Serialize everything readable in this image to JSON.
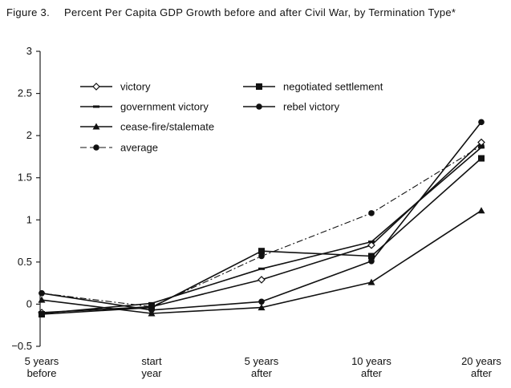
{
  "figure": {
    "label": "Figure 3.",
    "title": "Percent Per Capita GDP Growth before and after Civil War, by Termination Type*"
  },
  "chart_data": {
    "type": "line",
    "title": "Percent Per Capita GDP Growth before and after Civil War, by Termination Type*",
    "xlabel": "",
    "ylabel": "",
    "categories": [
      [
        "5 years",
        "before"
      ],
      [
        "start",
        "year"
      ],
      [
        "5 years",
        "after"
      ],
      [
        "10 years",
        "after"
      ],
      [
        "20 years",
        "after"
      ]
    ],
    "ylim": [
      -0.5,
      3
    ],
    "yticks": [
      "−0.5",
      "0",
      "0.5",
      "1",
      "1.5",
      "2",
      "2.5",
      "3"
    ],
    "ytick_values": [
      -0.5,
      0,
      0.5,
      1,
      1.5,
      2,
      2.5,
      3
    ],
    "grid": false,
    "legend_position": "top-left",
    "series": [
      {
        "name": "victory",
        "marker": "diamond-open",
        "dash": "solid",
        "values": [
          -0.1,
          -0.03,
          0.29,
          0.7,
          1.92
        ]
      },
      {
        "name": "negotiated settlement",
        "marker": "square",
        "dash": "solid",
        "values": [
          -0.12,
          -0.04,
          0.63,
          0.57,
          1.73
        ]
      },
      {
        "name": "government victory",
        "marker": "dash",
        "dash": "solid",
        "values": [
          -0.11,
          0.01,
          0.42,
          0.74,
          1.86
        ]
      },
      {
        "name": "rebel victory",
        "marker": "circle",
        "dash": "solid",
        "values": [
          0.13,
          -0.07,
          0.03,
          0.51,
          2.16
        ]
      },
      {
        "name": "cease-fire/stalemate",
        "marker": "triangle",
        "dash": "solid",
        "values": [
          0.05,
          -0.11,
          -0.04,
          0.26,
          1.11
        ]
      },
      {
        "name": "average",
        "marker": "circle",
        "dash": "dashdot",
        "values": [
          0.13,
          -0.03,
          0.57,
          1.08,
          1.88
        ]
      }
    ]
  }
}
